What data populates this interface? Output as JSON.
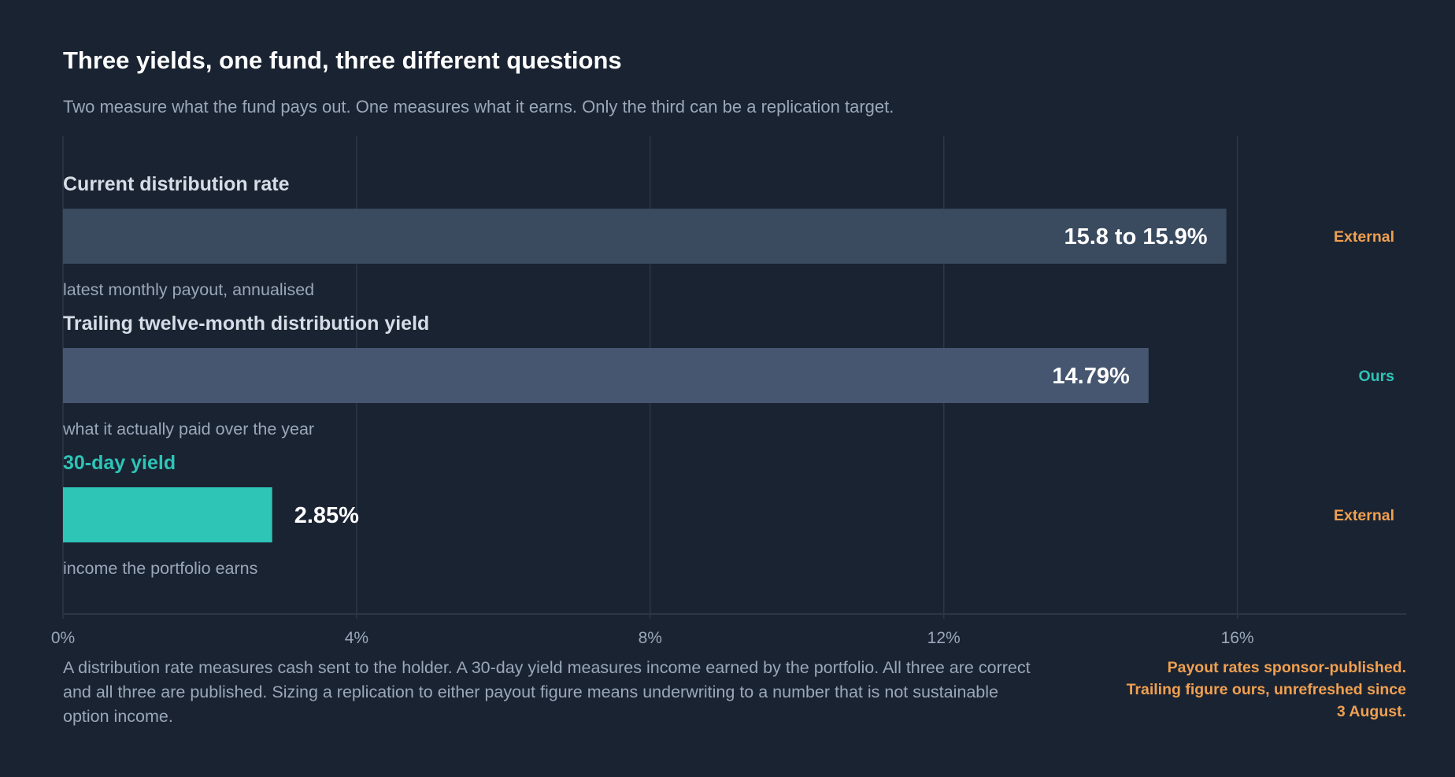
{
  "header": {
    "title": "Three yields, one fund, three different questions",
    "subtitle": "Two measure what the fund pays out. One measures what it earns. Only the third can be a replication target."
  },
  "chart_data": {
    "type": "bar",
    "orientation": "horizontal",
    "xlim": [
      0,
      18.3
    ],
    "x_ticks": [
      0,
      4,
      8,
      12,
      16
    ],
    "x_tick_labels": [
      "0%",
      "4%",
      "8%",
      "12%",
      "16%"
    ],
    "grid": true,
    "bars": [
      {
        "label": "Current distribution rate",
        "value": 15.85,
        "value_label": "15.8 to 15.9%",
        "description": "latest monthly payout, annualised",
        "source_tag": "External",
        "bar_color": "#3a4a5f",
        "label_color": "#d6dde6",
        "tag_color": "#f0a050"
      },
      {
        "label": "Trailing twelve-month distribution yield",
        "value": 14.79,
        "value_label": "14.79%",
        "description": "what it actually paid over the year",
        "source_tag": "Ours",
        "bar_color": "#465670",
        "label_color": "#d6dde6",
        "tag_color": "#2ec4b6"
      },
      {
        "label": "30-day yield",
        "value": 2.85,
        "value_label": "2.85%",
        "description": "income the portfolio earns",
        "source_tag": "External",
        "bar_color": "#2ec4b6",
        "label_color": "#2ec4b6",
        "tag_color": "#f0a050"
      }
    ]
  },
  "footer": {
    "note": "A distribution rate measures cash sent to the holder. A 30-day yield measures income earned by the portfolio. All three are correct and all three are published. Sizing a replication to either payout figure means underwriting to a number that is not sustainable option income.",
    "source": "Payout rates sponsor-published. Trailing figure ours, unrefreshed since 3 August."
  },
  "colors": {
    "background": "#1a2332",
    "grid": "#2c3746",
    "axis_text": "#9aa7b8",
    "value_text": "#ffffff"
  }
}
